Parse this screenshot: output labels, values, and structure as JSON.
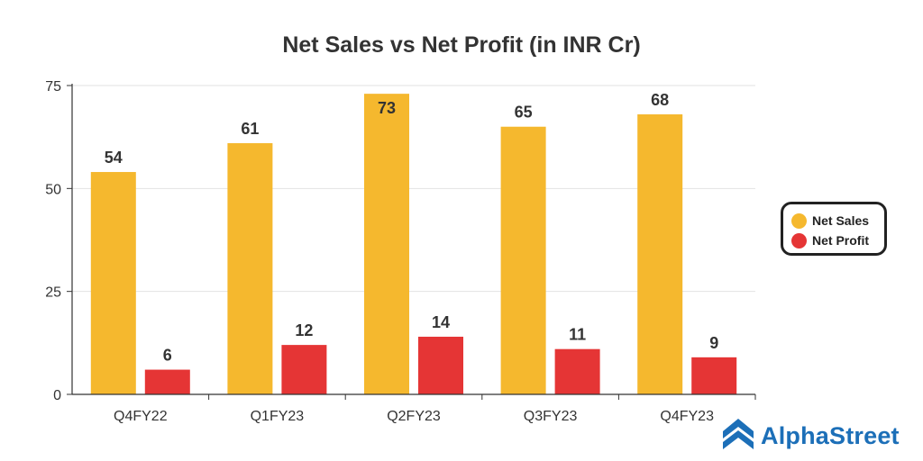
{
  "chart_data": {
    "type": "bar",
    "title": "Net Sales vs Net Profit (in INR Cr)",
    "categories": [
      "Q4FY22",
      "Q1FY23",
      "Q2FY23",
      "Q3FY23",
      "Q4FY23"
    ],
    "series": [
      {
        "name": "Net Sales",
        "values": [
          54,
          61,
          73,
          65,
          68
        ],
        "color": "#f5b82e"
      },
      {
        "name": "Net Profit",
        "values": [
          6,
          12,
          14,
          11,
          9
        ],
        "color": "#e53535"
      }
    ],
    "xlabel": "",
    "ylabel": "",
    "ylim": [
      0,
      75
    ],
    "yticks": [
      0,
      25,
      50,
      75
    ],
    "grid": true,
    "legend_position": "right"
  },
  "brand": {
    "name": "AlphaStreet",
    "icon": "alphastreet-logo-icon",
    "color": "#1c6fb8"
  }
}
